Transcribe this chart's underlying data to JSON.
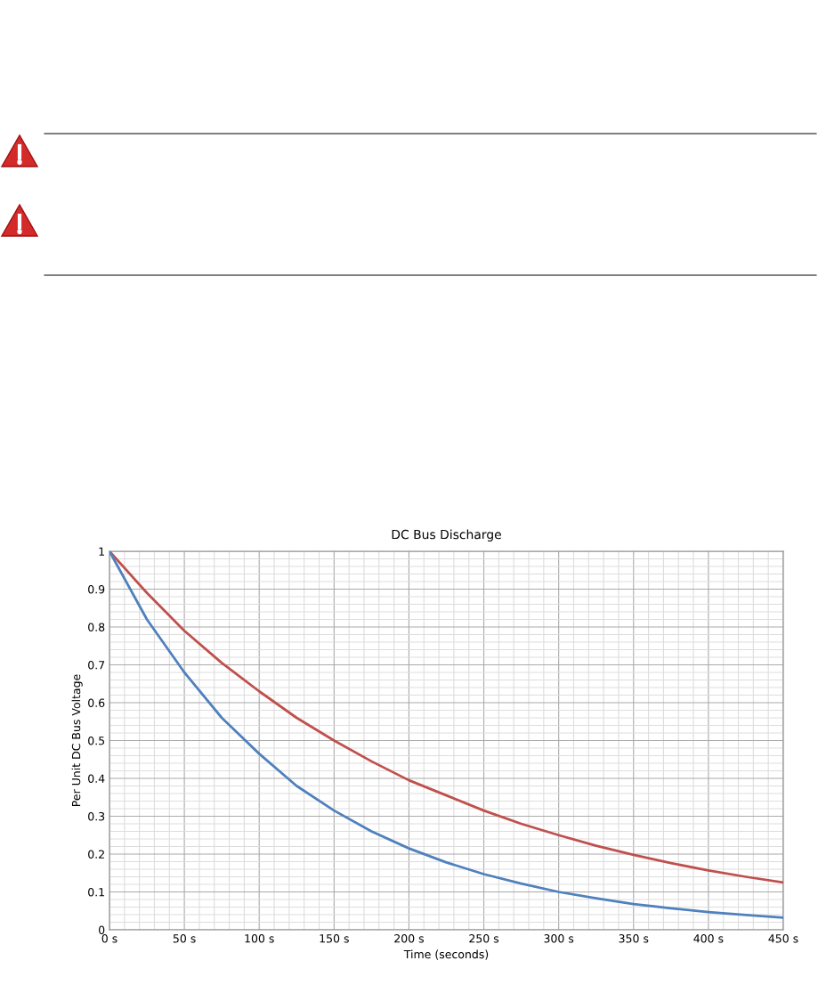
{
  "chart_data": {
    "type": "line",
    "title": "DC Bus Discharge",
    "xlabel": "Time (seconds)",
    "ylabel": "Per Unit DC Bus Voltage",
    "x": [
      0,
      25,
      50,
      75,
      100,
      125,
      150,
      175,
      200,
      225,
      250,
      275,
      300,
      325,
      350,
      375,
      400,
      425,
      450
    ],
    "series": [
      {
        "color": "#c0504d",
        "values": [
          1,
          0.89,
          0.79,
          0.705,
          0.63,
          0.56,
          0.5,
          0.445,
          0.395,
          0.355,
          0.315,
          0.28,
          0.25,
          0.222,
          0.198,
          0.176,
          0.157,
          0.14,
          0.125
        ]
      },
      {
        "color": "#4f81bd",
        "values": [
          1,
          0.82,
          0.68,
          0.56,
          0.465,
          0.38,
          0.315,
          0.26,
          0.215,
          0.178,
          0.147,
          0.122,
          0.1,
          0.083,
          0.068,
          0.057,
          0.047,
          0.039,
          0.032
        ]
      }
    ],
    "xlim": [
      0,
      450
    ],
    "ylim": [
      0,
      1
    ],
    "xticks": [
      {
        "value": 0,
        "label": "0 s"
      },
      {
        "value": 50,
        "label": "50 s"
      },
      {
        "value": 100,
        "label": "100 s"
      },
      {
        "value": 150,
        "label": "150 s"
      },
      {
        "value": 200,
        "label": "200 s"
      },
      {
        "value": 250,
        "label": "250 s"
      },
      {
        "value": 300,
        "label": "300 s"
      },
      {
        "value": 350,
        "label": "350 s"
      },
      {
        "value": 400,
        "label": "400 s"
      },
      {
        "value": 450,
        "label": "450 s"
      }
    ],
    "yticks": [
      0,
      0.1,
      0.2,
      0.3,
      0.4,
      0.5,
      0.6,
      0.7,
      0.8,
      0.9,
      1
    ],
    "grid": true,
    "marker": "none",
    "line_style": "solid"
  }
}
